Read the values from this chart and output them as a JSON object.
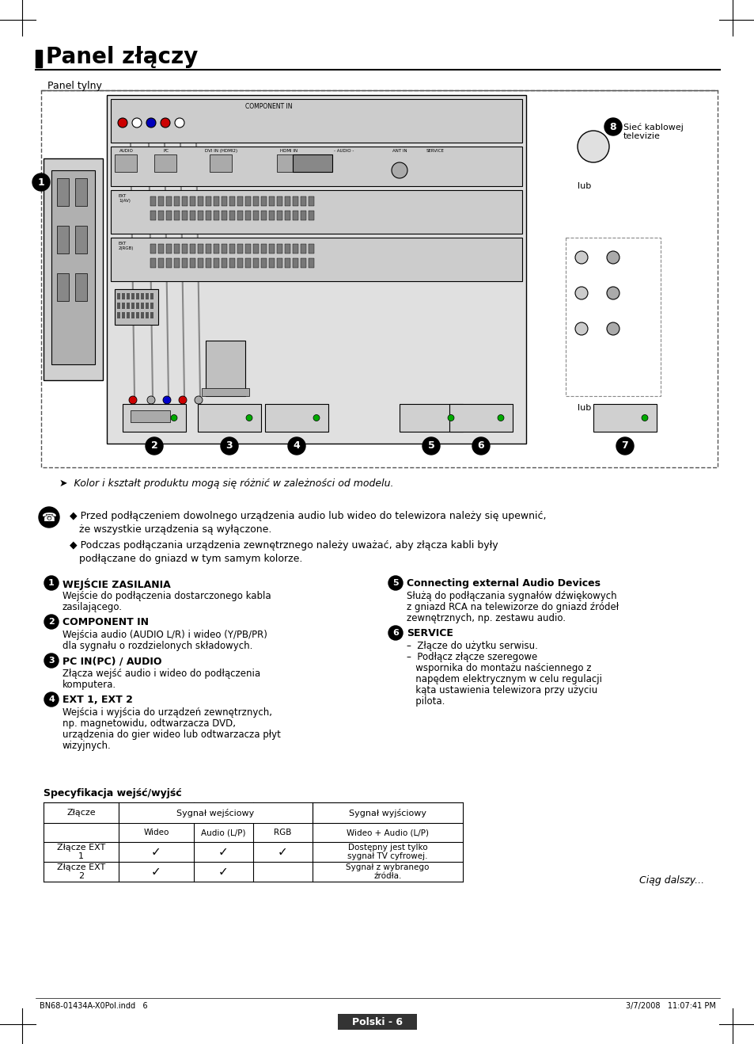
{
  "title": "Panel złączy",
  "panel_tylny": "Panel tylny",
  "bg_color": "#ffffff",
  "note_text": "➤  Kolor i kształt produktu mogą się różnić w zależności od modelu.",
  "phone_note_line1": "Przed podłączeniem dowolnego urządzenia audio lub wideo do telewizora należy się upewnić,",
  "phone_note_line2": "że wszystkie urządzenia są wyłączone.",
  "phone_note_line3": "Podczas podłączania urządzenia zewnętrznego należy uważać, aby złącza kabli były",
  "phone_note_line4": "podłączane do gniazd w tym samym kolorze.",
  "items_left": [
    {
      "num": "1",
      "title": "WEJŚCIE ZASILANIA",
      "body": "Wejście do podłączenia dostarczonego kabla\nzasilającego."
    },
    {
      "num": "2",
      "title": "COMPONENT IN",
      "body": "Wejścia audio (AUDIO L/R) i wideo (Y/PB/PR)\ndla sygnału o rozdzielonych składowych."
    },
    {
      "num": "3",
      "title": "PC IN(PC) / AUDIO",
      "body": "Złącza wejść audio i wideo do podłączenia\nkomputera."
    },
    {
      "num": "4",
      "title": "EXT 1, EXT 2",
      "body": "Wejścia i wyjścia do urządzeń zewnętrznych,\nnp. magnetowidu, odtwarzacza DVD,\nurządzenia do gier wideo lub odtwarzacza płyt\nwizyjnych."
    }
  ],
  "items_right": [
    {
      "num": "5",
      "title": "Connecting external Audio Devices",
      "body": "Służą do podłączania sygnałów dźwiękowych\nz gniazd RCA na telewizorze do gniazd źródeł\nzewnętrznych, np. zestawu audio."
    },
    {
      "num": "6",
      "title": "SERVICE",
      "body": "–  Złącze do użytku serwisu.\n–  Podłącz złącze szeregowe\n   wspornika do montażu naściennego z\n   napędem elektrycznym w celu regulacji\n   kąta ustawienia telewizora przy użyciu\n   pilota."
    }
  ],
  "spec_title": "Specyfikacja wejść/wyjść",
  "spec_rows": [
    {
      "label": "Złącze EXT\n1",
      "wideo": true,
      "audio": true,
      "rgb": true,
      "wyjscie": "Dostępny jest tylko\nsygnał TV cyfrowej."
    },
    {
      "label": "Złącze EXT\n2",
      "wideo": true,
      "audio": true,
      "rgb": false,
      "wyjscie": "Sygnał z wybranego\nźródła."
    }
  ],
  "footer_left": "BN68-01434A-X0Pol.indd   6",
  "footer_right": "3/7/2008   11:07:41 PM",
  "footer_page": "Polski - 6",
  "ciag_dalszy": "Ciąg dalszy...",
  "sieci_text": "Sieć kablowej\ntelevizie",
  "lub1": "lub",
  "lub2": "lub"
}
